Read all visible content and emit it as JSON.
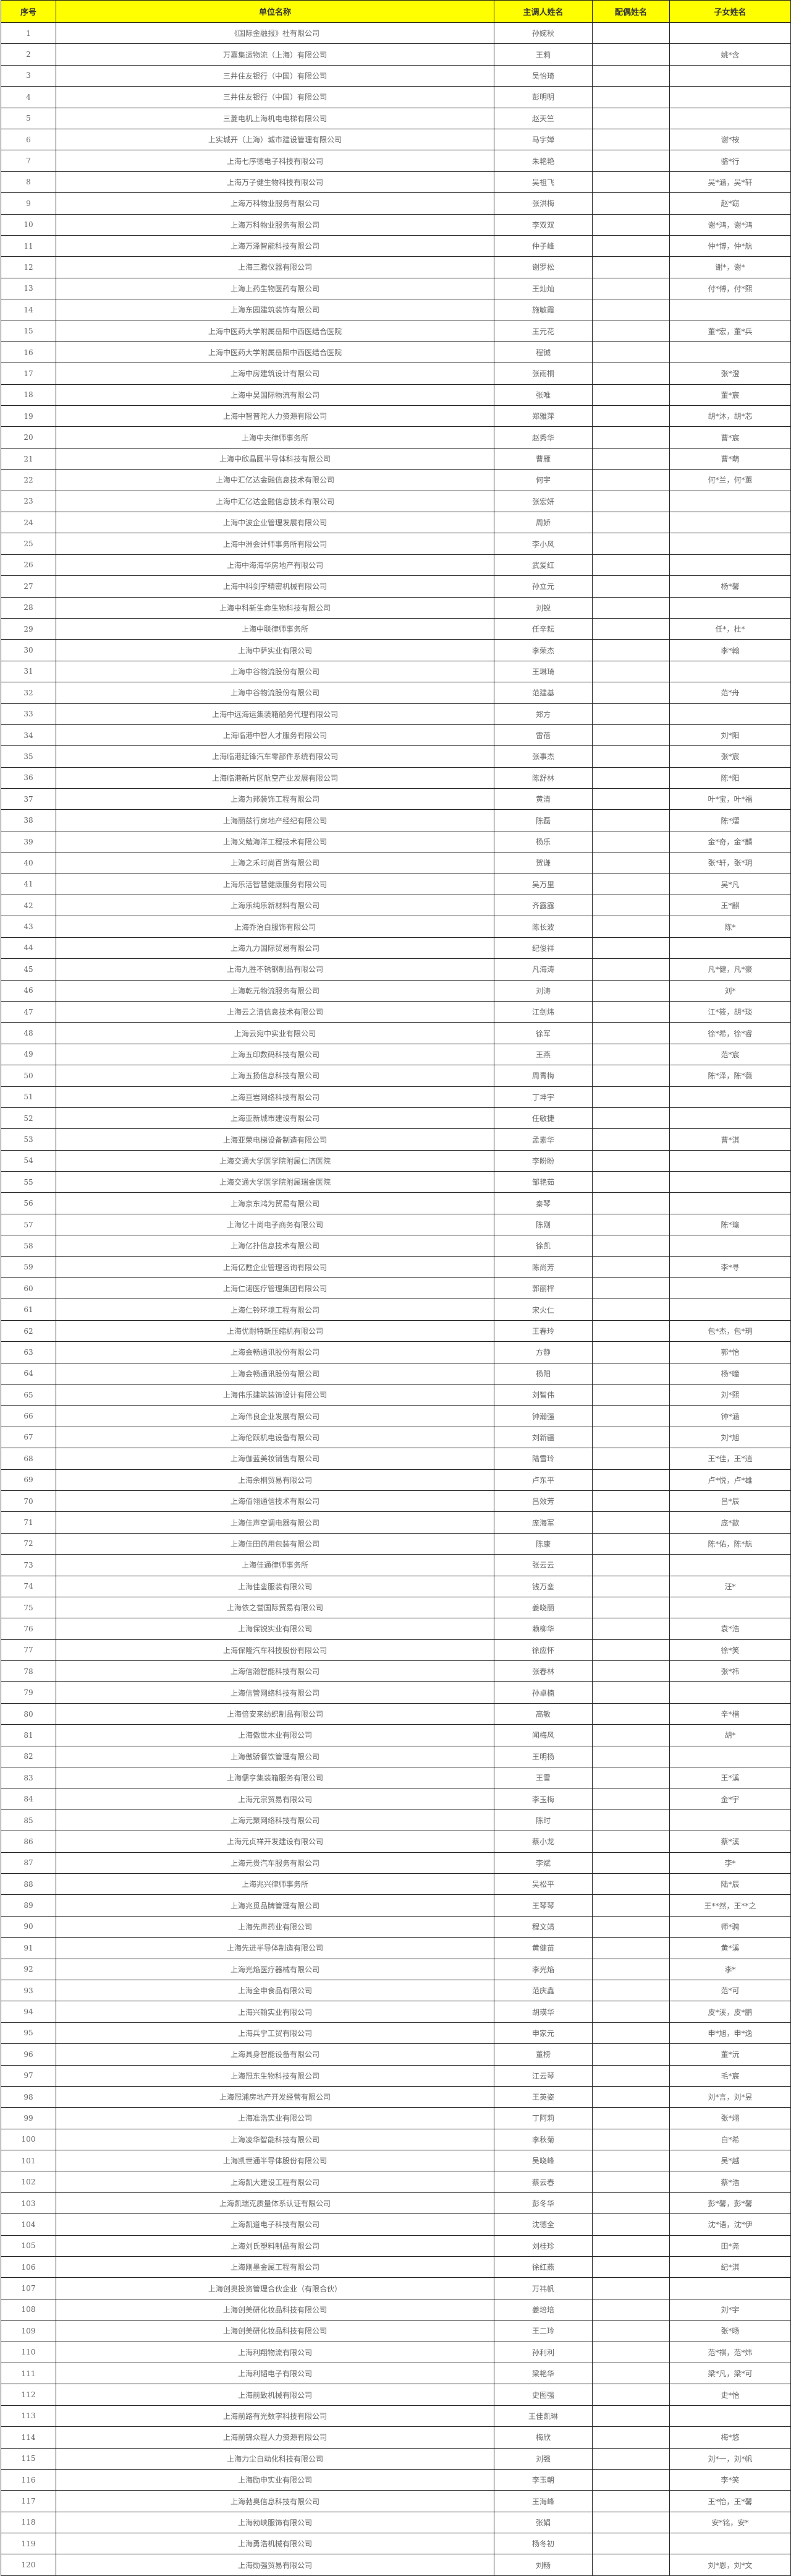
{
  "header": {
    "no": "序号",
    "company": "单位名称",
    "main": "主调人姓名",
    "spouse": "配偶姓名",
    "children": "子女姓名"
  },
  "colors": {
    "header_bg": "#ffff00",
    "text": "#666666"
  },
  "rows": [
    [
      "1",
      "《国际金融报》社有限公司",
      "孙婉秋",
      "",
      ""
    ],
    [
      "2",
      "万嘉集运物流（上海）有限公司",
      "王莉",
      "",
      "姚*含"
    ],
    [
      "3",
      "三井住友银行（中国）有限公司",
      "吴怡琦",
      "",
      ""
    ],
    [
      "4",
      "三井住友银行（中国）有限公司",
      "彭明明",
      "",
      ""
    ],
    [
      "5",
      "三菱电机上海机电电梯有限公司",
      "赵天竺",
      "",
      ""
    ],
    [
      "6",
      "上实城开（上海）城市建设管理有限公司",
      "马宇婵",
      "",
      "谢*桉"
    ],
    [
      "7",
      "上海七序德电子科技有限公司",
      "朱艳艳",
      "",
      "骆*行"
    ],
    [
      "8",
      "上海万子健生物科技有限公司",
      "吴祖飞",
      "",
      "吴*涵，吴*轩"
    ],
    [
      "9",
      "上海万科物业服务有限公司",
      "张洪梅",
      "",
      "赵*窈"
    ],
    [
      "10",
      "上海万科物业服务有限公司",
      "李双双",
      "",
      "谢*鸿，谢*鸿"
    ],
    [
      "11",
      "上海万泽智能科技有限公司",
      "仲子峰",
      "",
      "仲*博，仲*航"
    ],
    [
      "12",
      "上海三腾仪器有限公司",
      "谢罗松",
      "",
      "谢*，谢*"
    ],
    [
      "13",
      "上海上药生物医药有限公司",
      "王灿灿",
      "",
      "付*傅，付*熙"
    ],
    [
      "14",
      "上海东园建筑装饰有限公司",
      "施敏霞",
      "",
      ""
    ],
    [
      "15",
      "上海中医药大学附属岳阳中西医结合医院",
      "王元花",
      "",
      "董*宏，董*兵"
    ],
    [
      "16",
      "上海中医药大学附属岳阳中西医结合医院",
      "程铖",
      "",
      ""
    ],
    [
      "17",
      "上海中房建筑设计有限公司",
      "张雨桐",
      "",
      "张*澄"
    ],
    [
      "18",
      "上海中昊国际物流有限公司",
      "张唯",
      "",
      "董*宸"
    ],
    [
      "19",
      "上海中智普陀人力资源有限公司",
      "郑雅萍",
      "",
      "胡*沐，胡*芯"
    ],
    [
      "20",
      "上海中夫律师事务所",
      "赵秀华",
      "",
      "曹*宸"
    ],
    [
      "21",
      "上海中欣晶圆半导体科技有限公司",
      "曹雁",
      "",
      "曹*萌"
    ],
    [
      "22",
      "上海中汇亿达金融信息技术有限公司",
      "何宇",
      "",
      "何*兰，何*蕙"
    ],
    [
      "23",
      "上海中汇亿达金融信息技术有限公司",
      "张宏妍",
      "",
      ""
    ],
    [
      "24",
      "上海中波企业管理发展有限公司",
      "周娇",
      "",
      ""
    ],
    [
      "25",
      "上海中洲会计师事务所有限公司",
      "李小风",
      "",
      ""
    ],
    [
      "26",
      "上海中海海华房地产有限公司",
      "武爱红",
      "",
      ""
    ],
    [
      "27",
      "上海中科剑宇精密机械有限公司",
      "孙立元",
      "",
      "杨*馨"
    ],
    [
      "28",
      "上海中科新生命生物科技有限公司",
      "刘锐",
      "",
      ""
    ],
    [
      "29",
      "上海中联律师事务所",
      "任辛耘",
      "",
      "任*，杜*"
    ],
    [
      "30",
      "上海中萨实业有限公司",
      "李荣杰",
      "",
      "李*翰"
    ],
    [
      "31",
      "上海中谷物流股份有限公司",
      "王琳琦",
      "",
      ""
    ],
    [
      "32",
      "上海中谷物流股份有限公司",
      "范建基",
      "",
      "范*舟"
    ],
    [
      "33",
      "上海中远海运集装箱船务代理有限公司",
      "郑方",
      "",
      ""
    ],
    [
      "34",
      "上海临港中智人才服务有限公司",
      "雷蓓",
      "",
      "刘*阳"
    ],
    [
      "35",
      "上海临港延锋汽车零部件系统有限公司",
      "张事杰",
      "",
      "张*宸"
    ],
    [
      "36",
      "上海临港新片区航空产业发展有限公司",
      "陈舒林",
      "",
      "陈*阳"
    ],
    [
      "37",
      "上海为邦装饰工程有限公司",
      "黄清",
      "",
      "叶*宝，叶*福"
    ],
    [
      "38",
      "上海丽兹行房地产经纪有限公司",
      "陈磊",
      "",
      "陈*熠"
    ],
    [
      "39",
      "上海义勉海洋工程技术有限公司",
      "杨乐",
      "",
      "金*奇，金*麟"
    ],
    [
      "40",
      "上海之禾时尚百货有限公司",
      "贺谦",
      "",
      "张*轩，张*玥"
    ],
    [
      "41",
      "上海乐活智慧健康服务有限公司",
      "吴万里",
      "",
      "吴*凡"
    ],
    [
      "42",
      "上海乐纯乐新材料有限公司",
      "齐露露",
      "",
      "王*麒"
    ],
    [
      "43",
      "上海乔治白服饰有限公司",
      "陈长波",
      "",
      "陈*"
    ],
    [
      "44",
      "上海九力国际贸易有限公司",
      "纪俊祥",
      "",
      ""
    ],
    [
      "45",
      "上海九胜不锈钢制品有限公司",
      "凡海涛",
      "",
      "凡*健，凡*豪"
    ],
    [
      "46",
      "上海乾元物流服务有限公司",
      "刘涛",
      "",
      "刘*"
    ],
    [
      "47",
      "上海云之清信息技术有限公司",
      "江剑炜",
      "",
      "江*筱，胡*琰"
    ],
    [
      "48",
      "上海云宛中实业有限公司",
      "徐军",
      "",
      "徐*希，徐*睿"
    ],
    [
      "49",
      "上海五印数码科技有限公司",
      "王燕",
      "",
      "范*宸"
    ],
    [
      "50",
      "上海五扬信息科技有限公司",
      "周青梅",
      "",
      "陈*泽，陈*薇"
    ],
    [
      "51",
      "上海亘岩网络科技有限公司",
      "丁坤宇",
      "",
      ""
    ],
    [
      "52",
      "上海亚新城市建设有限公司",
      "任敏捷",
      "",
      ""
    ],
    [
      "53",
      "上海亚荣电梯设备制造有限公司",
      "孟素华",
      "",
      "曹*淇"
    ],
    [
      "54",
      "上海交通大学医学院附属仁济医院",
      "李盼盼",
      "",
      ""
    ],
    [
      "55",
      "上海交通大学医学院附属瑞金医院",
      "邹艳茹",
      "",
      ""
    ],
    [
      "56",
      "上海京东鸿为贸易有限公司",
      "秦琴",
      "",
      ""
    ],
    [
      "57",
      "上海亿十尚电子商务有限公司",
      "陈刚",
      "",
      "陈*瑜"
    ],
    [
      "58",
      "上海亿扑信息技术有限公司",
      "徐凯",
      "",
      ""
    ],
    [
      "59",
      "上海亿甦企业管理咨询有限公司",
      "陈尚芳",
      "",
      "李*寻"
    ],
    [
      "60",
      "上海仁诺医疗管理集团有限公司",
      "郭丽枰",
      "",
      ""
    ],
    [
      "61",
      "上海仁铃环境工程有限公司",
      "宋火仁",
      "",
      ""
    ],
    [
      "62",
      "上海优耐特斯压缩机有限公司",
      "王春玲",
      "",
      "包*杰，包*玥"
    ],
    [
      "63",
      "上海会畅通讯股份有限公司",
      "方静",
      "",
      "郭*怡"
    ],
    [
      "64",
      "上海会畅通讯股份有限公司",
      "杨阳",
      "",
      "杨*曈"
    ],
    [
      "65",
      "上海伟乐建筑装饰设计有限公司",
      "刘智伟",
      "",
      "刘*熙"
    ],
    [
      "66",
      "上海伟良企业发展有限公司",
      "钟瀚强",
      "",
      "钟*涵"
    ],
    [
      "67",
      "上海伦跃机电设备有限公司",
      "刘新疆",
      "",
      "刘*旭"
    ],
    [
      "68",
      "上海伽蓝美妆销售有限公司",
      "陆雪玲",
      "",
      "王*佳，王*逍"
    ],
    [
      "69",
      "上海余桐贸易有限公司",
      "卢东平",
      "",
      "卢*悦，卢*雄"
    ],
    [
      "70",
      "上海佰翎通信技术有限公司",
      "吕效芳",
      "",
      "吕*辰"
    ],
    [
      "71",
      "上海佳声空调电器有限公司",
      "庞海军",
      "",
      "庞*歆"
    ],
    [
      "72",
      "上海佳田药用包装有限公司",
      "陈康",
      "",
      "陈*佑，陈*航"
    ],
    [
      "73",
      "上海佳通律师事务所",
      "张云云",
      "",
      ""
    ],
    [
      "74",
      "上海佳銮服装有限公司",
      "钱万銮",
      "",
      "汪*"
    ],
    [
      "75",
      "上海依之誉国际贸易有限公司",
      "姜晓丽",
      "",
      ""
    ],
    [
      "76",
      "上海保锐实业有限公司",
      "赖柳华",
      "",
      "袁*浩"
    ],
    [
      "77",
      "上海保隆汽车科技股份有限公司",
      "徐应怀",
      "",
      "徐*笑"
    ],
    [
      "78",
      "上海信瀚智能科技有限公司",
      "张春林",
      "",
      "张*祎"
    ],
    [
      "79",
      "上海信管网络科技有限公司",
      "孙卓楠",
      "",
      ""
    ],
    [
      "80",
      "上海倍安来纺织制品有限公司",
      "高敏",
      "",
      "辛*楷"
    ],
    [
      "81",
      "上海傲世木业有限公司",
      "闻梅风",
      "",
      "胡*"
    ],
    [
      "82",
      "上海傲骄餐饮管理有限公司",
      "王明杨",
      "",
      ""
    ],
    [
      "83",
      "上海儒亨集装箱服务有限公司",
      "王雪",
      "",
      "王*溪"
    ],
    [
      "84",
      "上海元宗贸易有限公司",
      "李玉梅",
      "",
      "金*宇"
    ],
    [
      "85",
      "上海元聚网络科技有限公司",
      "陈时",
      "",
      ""
    ],
    [
      "86",
      "上海元贞祥开发建设有限公司",
      "蔡小龙",
      "",
      "蔡*溪"
    ],
    [
      "87",
      "上海元贵汽车服务有限公司",
      "李斌",
      "",
      "李*"
    ],
    [
      "88",
      "上海兆兴律师事务所",
      "吴松平",
      "",
      "陆*辰"
    ],
    [
      "89",
      "上海兆觅品牌管理有限公司",
      "王琴琴",
      "",
      "王**然，王**之"
    ],
    [
      "90",
      "上海先声药业有限公司",
      "程文靖",
      "",
      "师*骋"
    ],
    [
      "91",
      "上海先进半导体制造有限公司",
      "黄健苗",
      "",
      "黄*溪"
    ],
    [
      "92",
      "上海光焰医疗器械有限公司",
      "李光焰",
      "",
      "李*"
    ],
    [
      "93",
      "上海全申食品有限公司",
      "范庆鑫",
      "",
      "范*可"
    ],
    [
      "94",
      "上海兴翰实业有限公司",
      "胡瑛华",
      "",
      "皮*溪，皮*鹏"
    ],
    [
      "95",
      "上海兵宁工贸有限公司",
      "申家元",
      "",
      "申*旭，申*逸"
    ],
    [
      "96",
      "上海具身智能设备有限公司",
      "董榜",
      "",
      "董*沅"
    ],
    [
      "97",
      "上海冠东生物科技有限公司",
      "江云琴",
      "",
      "毛*宸"
    ],
    [
      "98",
      "上海冠浦房地产开发经营有限公司",
      "王英姿",
      "",
      "刘*言，刘*昱"
    ],
    [
      "99",
      "上海准浩实业有限公司",
      "丁阿莉",
      "",
      "张*翊"
    ],
    [
      "100",
      "上海凌华智能科技有限公司",
      "李秋菊",
      "",
      "白*希"
    ],
    [
      "101",
      "上海凯世通半导体股份有限公司",
      "吴晓峰",
      "",
      "吴*越"
    ],
    [
      "102",
      "上海凯大建设工程有限公司",
      "蔡云春",
      "",
      "蔡*浩"
    ],
    [
      "103",
      "上海凯瑞克质量体系认证有限公司",
      "彭冬华",
      "",
      "彭*馨，彭*馨"
    ],
    [
      "104",
      "上海凯道电子科技有限公司",
      "沈德全",
      "",
      "沈*语，沈*伊"
    ],
    [
      "105",
      "上海刘氏塑料制品有限公司",
      "刘桂珍",
      "",
      "田*尧"
    ],
    [
      "106",
      "上海刚墨金属工程有限公司",
      "徐红燕",
      "",
      "纪*淇"
    ],
    [
      "107",
      "上海创奥投资管理合伙企业（有限合伙）",
      "万祎帆",
      "",
      ""
    ],
    [
      "108",
      "上海创美研化妆品科技有限公司",
      "姜培培",
      "",
      "刘*宇"
    ],
    [
      "109",
      "上海创美研化妆品科技有限公司",
      "王二玲",
      "",
      "张*旸"
    ],
    [
      "110",
      "上海利翔物流有限公司",
      "孙利利",
      "",
      "范*祺，范*炜"
    ],
    [
      "111",
      "上海利韬电子有限公司",
      "梁艳华",
      "",
      "梁*凡，梁*可"
    ],
    [
      "112",
      "上海前致机械有限公司",
      "史图强",
      "",
      "史*怡"
    ],
    [
      "113",
      "上海前路有光数字科技有限公司",
      "王佳凯琳",
      "",
      ""
    ],
    [
      "114",
      "上海前锦众程人力资源有限公司",
      "梅欣",
      "",
      "梅*悠"
    ],
    [
      "115",
      "上海力尘自动化科技有限公司",
      "刘强",
      "",
      "刘*一，刘*帆"
    ],
    [
      "116",
      "上海励申实业有限公司",
      "李玉朝",
      "",
      "李*笑"
    ],
    [
      "117",
      "上海勃奥信息科技有限公司",
      "王海峰",
      "",
      "王*怡，王*馨"
    ],
    [
      "118",
      "上海勃峡服饰有限公司",
      "张娟",
      "",
      "安*铭，安*"
    ],
    [
      "119",
      "上海勇浩机械有限公司",
      "杨冬初",
      "",
      ""
    ],
    [
      "120",
      "上海勋强贸易有限公司",
      "刘畅",
      "",
      "刘*恩，刘*文"
    ]
  ]
}
